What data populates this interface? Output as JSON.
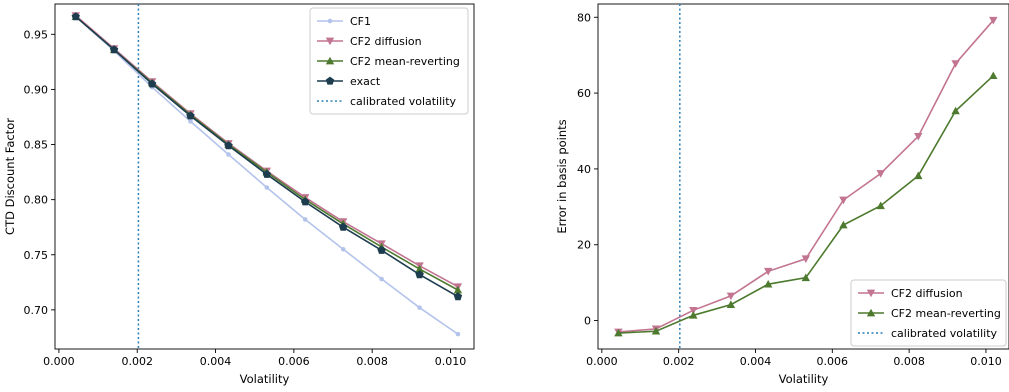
{
  "chart_data": [
    {
      "type": "line",
      "xlabel": "Volatility",
      "ylabel": "CTD Discount Factor",
      "xlim": [
        -0.0001,
        0.0106
      ],
      "ylim": [
        0.6645,
        0.9775
      ],
      "xticks": [
        0.0,
        0.002,
        0.004,
        0.006,
        0.008,
        0.01
      ],
      "xtick_labels": [
        "0.000",
        "0.002",
        "0.004",
        "0.006",
        "0.008",
        "0.010"
      ],
      "yticks": [
        0.7,
        0.75,
        0.8,
        0.85,
        0.9,
        0.95
      ],
      "ytick_labels": [
        "0.70",
        "0.75",
        "0.80",
        "0.85",
        "0.90",
        "0.95"
      ],
      "grid": false,
      "legend_position": "top-right",
      "x": [
        0.00043,
        0.00141,
        0.00238,
        0.00336,
        0.00433,
        0.00531,
        0.00629,
        0.00726,
        0.00824,
        0.00921,
        0.01019
      ],
      "series": [
        {
          "name": "CF1",
          "color": "#b4c3ec",
          "marker": "dot",
          "values": [
            0.966,
            0.935,
            0.902,
            0.871,
            0.841,
            0.811,
            0.782,
            0.755,
            0.728,
            0.702,
            0.678
          ]
        },
        {
          "name": "CF2 diffusion",
          "color": "#c27491",
          "marker": "triangle-down",
          "values": [
            0.967,
            0.937,
            0.907,
            0.878,
            0.851,
            0.826,
            0.802,
            0.78,
            0.76,
            0.74,
            0.721
          ]
        },
        {
          "name": "CF2 mean-reverting",
          "color": "#4d7a2e",
          "marker": "triangle-up",
          "values": [
            0.966,
            0.936,
            0.906,
            0.877,
            0.85,
            0.825,
            0.8,
            0.778,
            0.757,
            0.737,
            0.718
          ]
        },
        {
          "name": "exact",
          "color": "#1d3d4e",
          "marker": "pentagon",
          "values": [
            0.966,
            0.936,
            0.905,
            0.876,
            0.849,
            0.823,
            0.798,
            0.775,
            0.754,
            0.732,
            0.712
          ]
        }
      ],
      "vline": {
        "name": "calibrated volatility",
        "x": 0.00203,
        "color": "#2c7fb8"
      }
    },
    {
      "type": "line",
      "xlabel": "Volatility",
      "ylabel": "Error in basis points",
      "xlim": [
        -0.0001,
        0.0106
      ],
      "ylim": [
        -7.5,
        83.5
      ],
      "xticks": [
        0.0,
        0.002,
        0.004,
        0.006,
        0.008,
        0.01
      ],
      "xtick_labels": [
        "0.000",
        "0.002",
        "0.004",
        "0.006",
        "0.008",
        "0.010"
      ],
      "yticks": [
        0,
        20,
        40,
        60,
        80
      ],
      "ytick_labels": [
        "0",
        "20",
        "40",
        "60",
        "80"
      ],
      "grid": false,
      "legend_position": "bottom-right",
      "x": [
        0.00043,
        0.00141,
        0.00238,
        0.00336,
        0.00433,
        0.00531,
        0.00629,
        0.00726,
        0.00824,
        0.00921,
        0.01019
      ],
      "series": [
        {
          "name": "CF2 diffusion",
          "color": "#c27491",
          "marker": "triangle-down",
          "values": [
            -3.0,
            -2.2,
            2.7,
            6.5,
            13.0,
            16.3,
            31.8,
            38.8,
            48.6,
            67.8,
            79.2
          ]
        },
        {
          "name": "CF2 mean-reverting",
          "color": "#4d7a2e",
          "marker": "triangle-up",
          "values": [
            -3.3,
            -2.8,
            1.4,
            4.2,
            9.6,
            11.3,
            25.2,
            30.3,
            38.2,
            55.3,
            64.6
          ]
        }
      ],
      "vline": {
        "name": "calibrated volatility",
        "x": 0.00203,
        "color": "#2c7fb8"
      }
    }
  ]
}
